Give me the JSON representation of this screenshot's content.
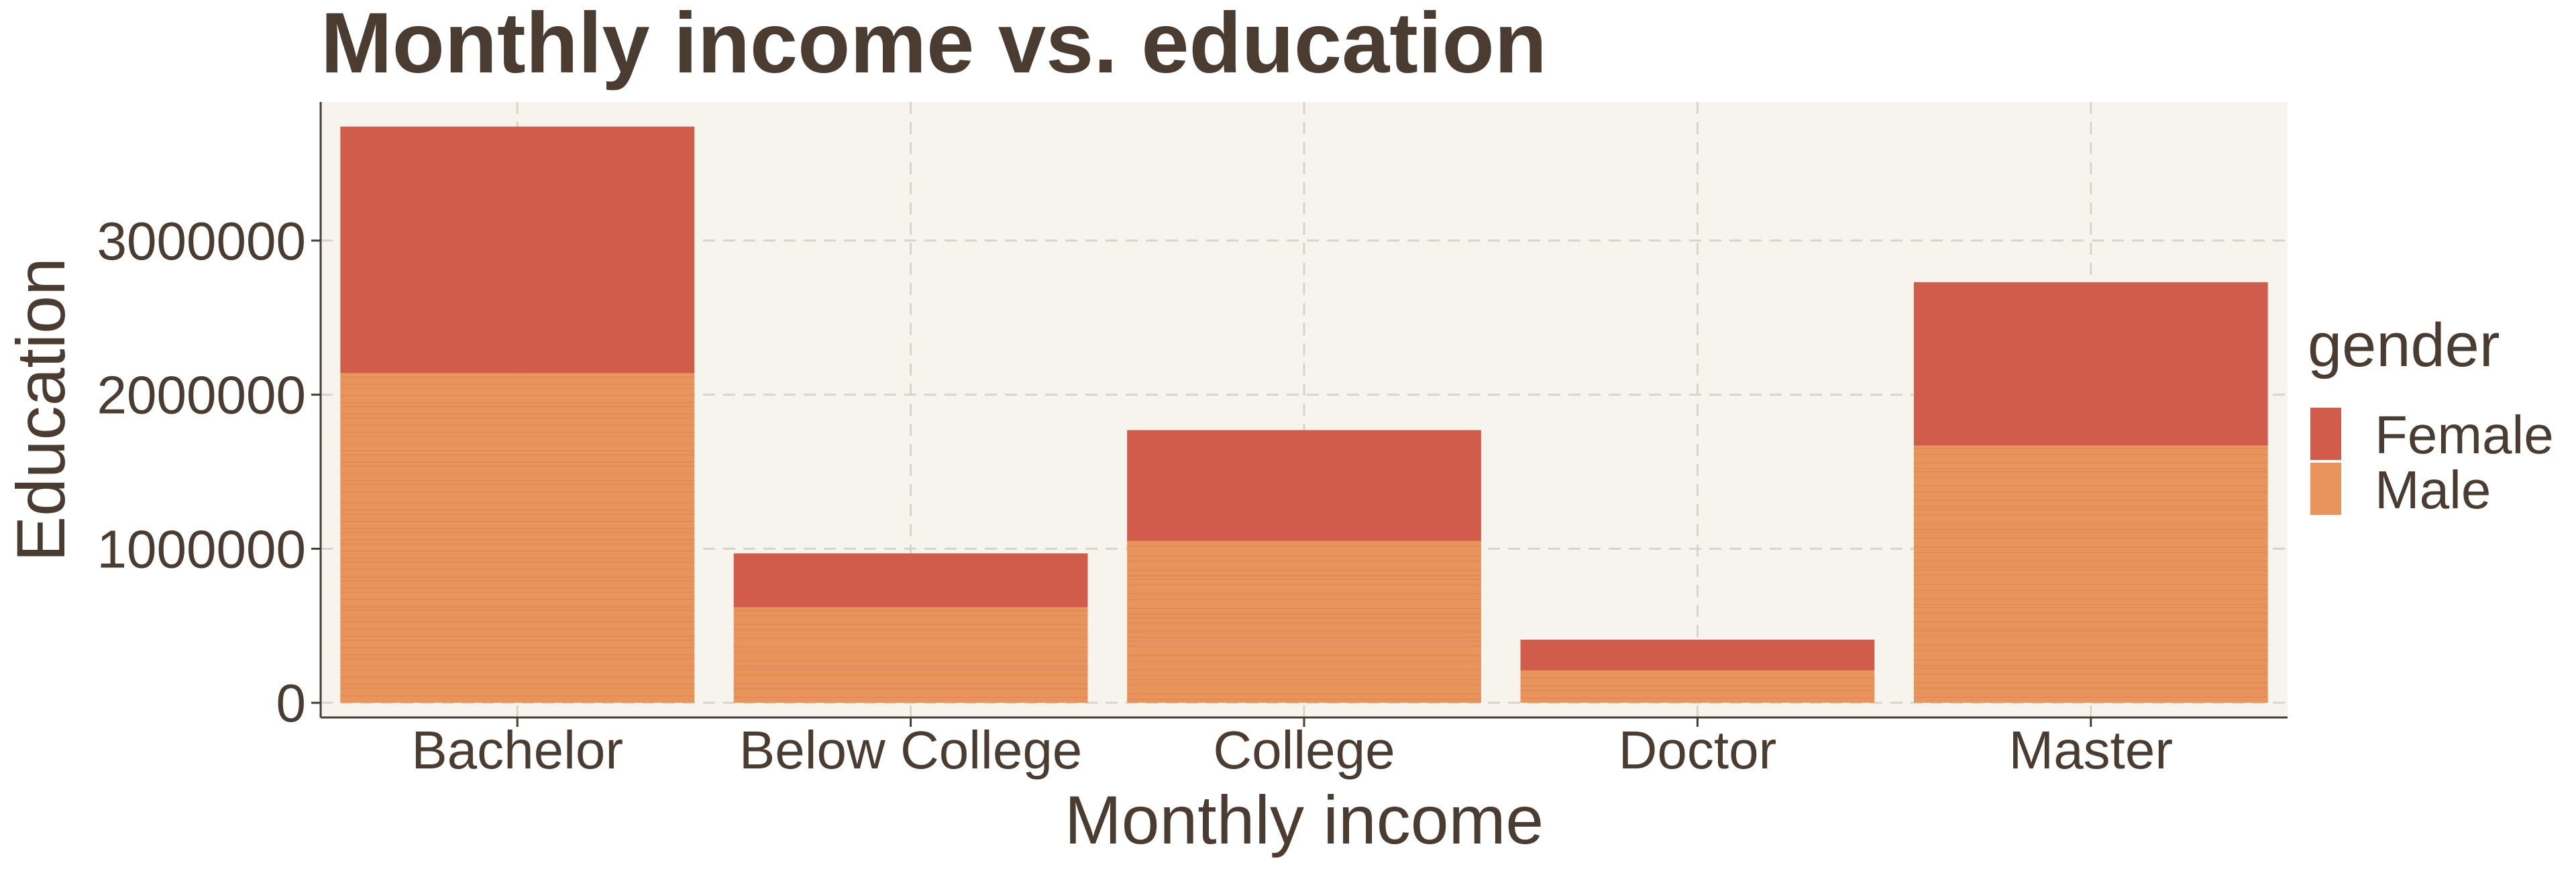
{
  "chart_data": {
    "type": "bar",
    "stacked": true,
    "title": "Monthly income vs. education",
    "xlabel": "Monthly income",
    "ylabel": "Education",
    "categories": [
      "Bachelor",
      "Below College",
      "College",
      "Doctor",
      "Master"
    ],
    "series": [
      {
        "name": "Female",
        "color": "#d15c4b",
        "values": [
          1600000,
          350000,
          720000,
          200000,
          1060000
        ]
      },
      {
        "name": "Male",
        "color": "#e8945a",
        "values": [
          2140000,
          620000,
          1050000,
          210000,
          1670000
        ]
      }
    ],
    "ylim": [
      -95000,
      3900000
    ],
    "yticks": [
      0,
      1000000,
      2000000,
      3000000
    ],
    "ytick_labels": [
      "0",
      "1000000",
      "2000000",
      "3000000"
    ],
    "grid": true,
    "legend": {
      "title": "gender",
      "position": "right",
      "entries": [
        "Female",
        "Male"
      ]
    },
    "panel_background": "#f7f4ee",
    "stripe_color": "#dd7f5a"
  }
}
